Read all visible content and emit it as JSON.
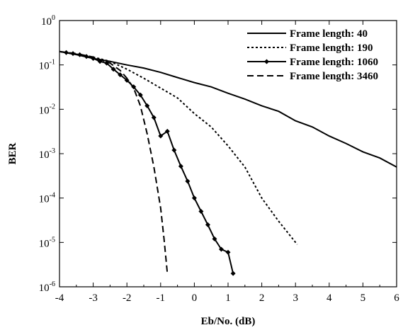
{
  "chart_data": {
    "type": "line",
    "title": "",
    "xlabel": "Eb/No. (dB)",
    "ylabel": "BER",
    "xlim": [
      -4,
      6
    ],
    "ylim": [
      1e-06,
      1
    ],
    "y_scale": "log",
    "x_ticks": [
      -4,
      -3,
      -2,
      -1,
      0,
      1,
      2,
      3,
      4,
      5,
      6
    ],
    "x_tick_labels": [
      "-4",
      "-3",
      "-2",
      "-1",
      "0",
      "1",
      "2",
      "3",
      "4",
      "5",
      "6"
    ],
    "y_ticks": [
      {
        "value": 1,
        "base": "10",
        "exp": "0"
      },
      {
        "value": 0.1,
        "base": "10",
        "exp": "-1"
      },
      {
        "value": 0.01,
        "base": "10",
        "exp": "-2"
      },
      {
        "value": 0.001,
        "base": "10",
        "exp": "-3"
      },
      {
        "value": 0.0001,
        "base": "10",
        "exp": "-4"
      },
      {
        "value": 1e-05,
        "base": "10",
        "exp": "-5"
      },
      {
        "value": 1e-06,
        "base": "10",
        "exp": "-6"
      }
    ],
    "grid": false,
    "legend_position": "top-right",
    "series": [
      {
        "name": "Frame length: 40",
        "style": "solid",
        "marker": "none",
        "x": [
          -4.0,
          -3.5,
          -3.0,
          -2.5,
          -2.0,
          -1.5,
          -1.0,
          -0.5,
          0.0,
          0.5,
          1.0,
          1.5,
          2.0,
          2.5,
          3.0,
          3.5,
          4.0,
          4.5,
          5.0,
          5.5,
          6.0
        ],
        "y": [
          0.2,
          0.17,
          0.14,
          0.12,
          0.1,
          0.085,
          0.068,
          0.052,
          0.04,
          0.032,
          0.023,
          0.017,
          0.012,
          0.009,
          0.0055,
          0.004,
          0.0025,
          0.0017,
          0.0011,
          0.0008,
          0.0005
        ]
      },
      {
        "name": "Frame length: 190",
        "style": "dotted",
        "marker": "none",
        "x": [
          -4.0,
          -3.0,
          -2.5,
          -2.0,
          -1.5,
          -1.0,
          -0.5,
          0.0,
          0.5,
          1.0,
          1.5,
          2.0,
          2.5,
          3.05
        ],
        "y": [
          0.2,
          0.15,
          0.12,
          0.08,
          0.05,
          0.03,
          0.018,
          0.008,
          0.004,
          0.0015,
          0.0005,
          0.0001,
          3e-05,
          9e-06
        ]
      },
      {
        "name": "Frame length: 1060",
        "style": "solid",
        "marker": "diamond",
        "x": [
          -4.0,
          -3.8,
          -3.6,
          -3.4,
          -3.2,
          -3.0,
          -2.8,
          -2.6,
          -2.4,
          -2.2,
          -2.0,
          -1.8,
          -1.6,
          -1.4,
          -1.2,
          -1.0,
          -0.8,
          -0.6,
          -0.4,
          -0.2,
          0.0,
          0.2,
          0.4,
          0.6,
          0.8,
          1.0,
          1.15
        ],
        "y": [
          0.2,
          0.19,
          0.18,
          0.17,
          0.155,
          0.14,
          0.12,
          0.11,
          0.08,
          0.06,
          0.045,
          0.032,
          0.021,
          0.012,
          0.0065,
          0.0025,
          0.0032,
          0.0012,
          0.00052,
          0.00024,
          0.0001,
          5e-05,
          2.5e-05,
          1.2e-05,
          7e-06,
          6e-06,
          2e-06
        ]
      },
      {
        "name": "Frame length: 3460",
        "style": "dashed",
        "marker": "none",
        "x": [
          -4.0,
          -3.5,
          -3.0,
          -2.5,
          -2.2,
          -2.0,
          -1.8,
          -1.6,
          -1.4,
          -1.2,
          -1.0,
          -0.9,
          -0.8
        ],
        "y": [
          0.2,
          0.18,
          0.15,
          0.11,
          0.075,
          0.05,
          0.03,
          0.012,
          0.0028,
          0.0005,
          6e-05,
          1.2e-05,
          2e-06
        ]
      }
    ]
  }
}
